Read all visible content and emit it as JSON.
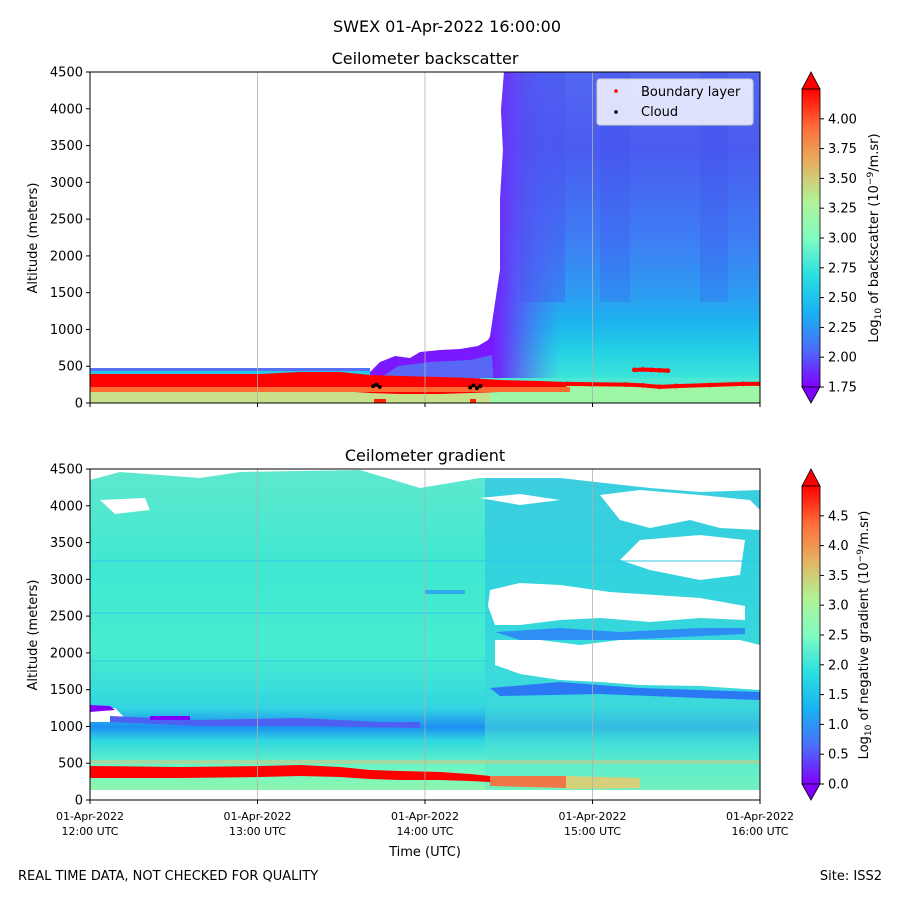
{
  "page": {
    "suptitle": "SWEX 01-Apr-2022 16:00:00",
    "footer_left": "REAL TIME DATA, NOT CHECKED FOR QUALITY",
    "footer_right": "Site: ISS2",
    "xlabel": "Time (UTC)"
  },
  "chart_data": [
    {
      "type": "heatmap",
      "title": "Ceilometer backscatter",
      "ylabel": "Altitude (meters)",
      "ylim": [
        0,
        4500
      ],
      "yticks": [
        "0",
        "500",
        "1000",
        "1500",
        "2000",
        "2500",
        "3000",
        "3500",
        "4000",
        "4500"
      ],
      "xlim_hours": [
        12,
        16
      ],
      "xticks_hidden": true,
      "grid": "vertical",
      "colorbar": {
        "label": "Log10 of backscatter (10^-9/m.sr)",
        "label_main": "Log",
        "label_sub": "10",
        "label_rest": " of backscatter (10",
        "label_sup": "−9",
        "label_end": "/m.sr)",
        "range": [
          1.75,
          4.25
        ],
        "ticks": [
          "1.75",
          "2.00",
          "2.25",
          "2.50",
          "2.75",
          "3.00",
          "3.25",
          "3.50",
          "3.75",
          "4.00"
        ],
        "colormap": "rainbow"
      },
      "legend": {
        "placement": "top-right",
        "entries": [
          {
            "label": "Boundary layer",
            "color": "#ff0000"
          },
          {
            "label": "Cloud",
            "color": "#000000"
          }
        ]
      },
      "description_regions": [
        {
          "t_start": 12.0,
          "t_end": 16.0,
          "alt_bottom": 0,
          "alt_top": 120,
          "value": 2.85
        },
        {
          "t_start": 12.0,
          "t_end": 13.7,
          "alt_bottom": 120,
          "alt_top": 400,
          "value": 4.25
        },
        {
          "t_start": 13.7,
          "t_end": 14.85,
          "alt_bottom": 150,
          "alt_top": 350,
          "value": 4.25
        }
      ],
      "boundary_layer": [
        {
          "t": 14.85,
          "alt": 260
        },
        {
          "t": 15.0,
          "alt": 255
        },
        {
          "t": 15.2,
          "alt": 250
        },
        {
          "t": 15.3,
          "alt": 240
        },
        {
          "t": 15.4,
          "alt": 220
        },
        {
          "t": 15.5,
          "alt": 230
        },
        {
          "t": 15.7,
          "alt": 245
        },
        {
          "t": 15.9,
          "alt": 260
        },
        {
          "t": 16.0,
          "alt": 260
        },
        {
          "t": 15.25,
          "alt": 450
        },
        {
          "t": 15.3,
          "alt": 455
        },
        {
          "t": 15.35,
          "alt": 450
        },
        {
          "t": 15.4,
          "alt": 445
        },
        {
          "t": 15.45,
          "alt": 440
        }
      ],
      "cloud": [
        {
          "t": 13.69,
          "alt": 230
        },
        {
          "t": 13.71,
          "alt": 250
        },
        {
          "t": 13.73,
          "alt": 220
        },
        {
          "t": 14.27,
          "alt": 210
        },
        {
          "t": 14.29,
          "alt": 240
        },
        {
          "t": 14.31,
          "alt": 200
        },
        {
          "t": 14.33,
          "alt": 230
        }
      ]
    },
    {
      "type": "heatmap",
      "title": "Ceilometer gradient",
      "ylabel": "Altitude (meters)",
      "ylim": [
        0,
        4500
      ],
      "yticks": [
        "0",
        "500",
        "1000",
        "1500",
        "2000",
        "2500",
        "3000",
        "3500",
        "4000",
        "4500"
      ],
      "xlim_hours": [
        12,
        16
      ],
      "xticks": [
        {
          "hour": 12,
          "line1": "01-Apr-2022",
          "line2": "12:00 UTC"
        },
        {
          "hour": 13,
          "line1": "01-Apr-2022",
          "line2": "13:00 UTC"
        },
        {
          "hour": 14,
          "line1": "01-Apr-2022",
          "line2": "14:00 UTC"
        },
        {
          "hour": 15,
          "line1": "01-Apr-2022",
          "line2": "15:00 UTC"
        },
        {
          "hour": 16,
          "line1": "01-Apr-2022",
          "line2": "16:00 UTC"
        }
      ],
      "grid": "vertical",
      "colorbar": {
        "label": "Log10 of negative gradient (10^-9/m.sr)",
        "label_main": "Log",
        "label_sub": "10",
        "label_rest": " of negative gradient (10",
        "label_sup": "−9",
        "label_end": "/m.sr)",
        "range": [
          0,
          5
        ],
        "ticks": [
          "0.0",
          "0.5",
          "1.0",
          "1.5",
          "2.0",
          "2.5",
          "3.0",
          "3.5",
          "4.0",
          "4.5"
        ],
        "colormap": "rainbow"
      }
    }
  ],
  "colors": {
    "rainbow": [
      "#8000ff",
      "#4c6cfa",
      "#18b2f2",
      "#2cdfe2",
      "#7ffcc1",
      "#b2f296",
      "#e5b262",
      "#ff6c38",
      "#ff0000"
    ]
  }
}
